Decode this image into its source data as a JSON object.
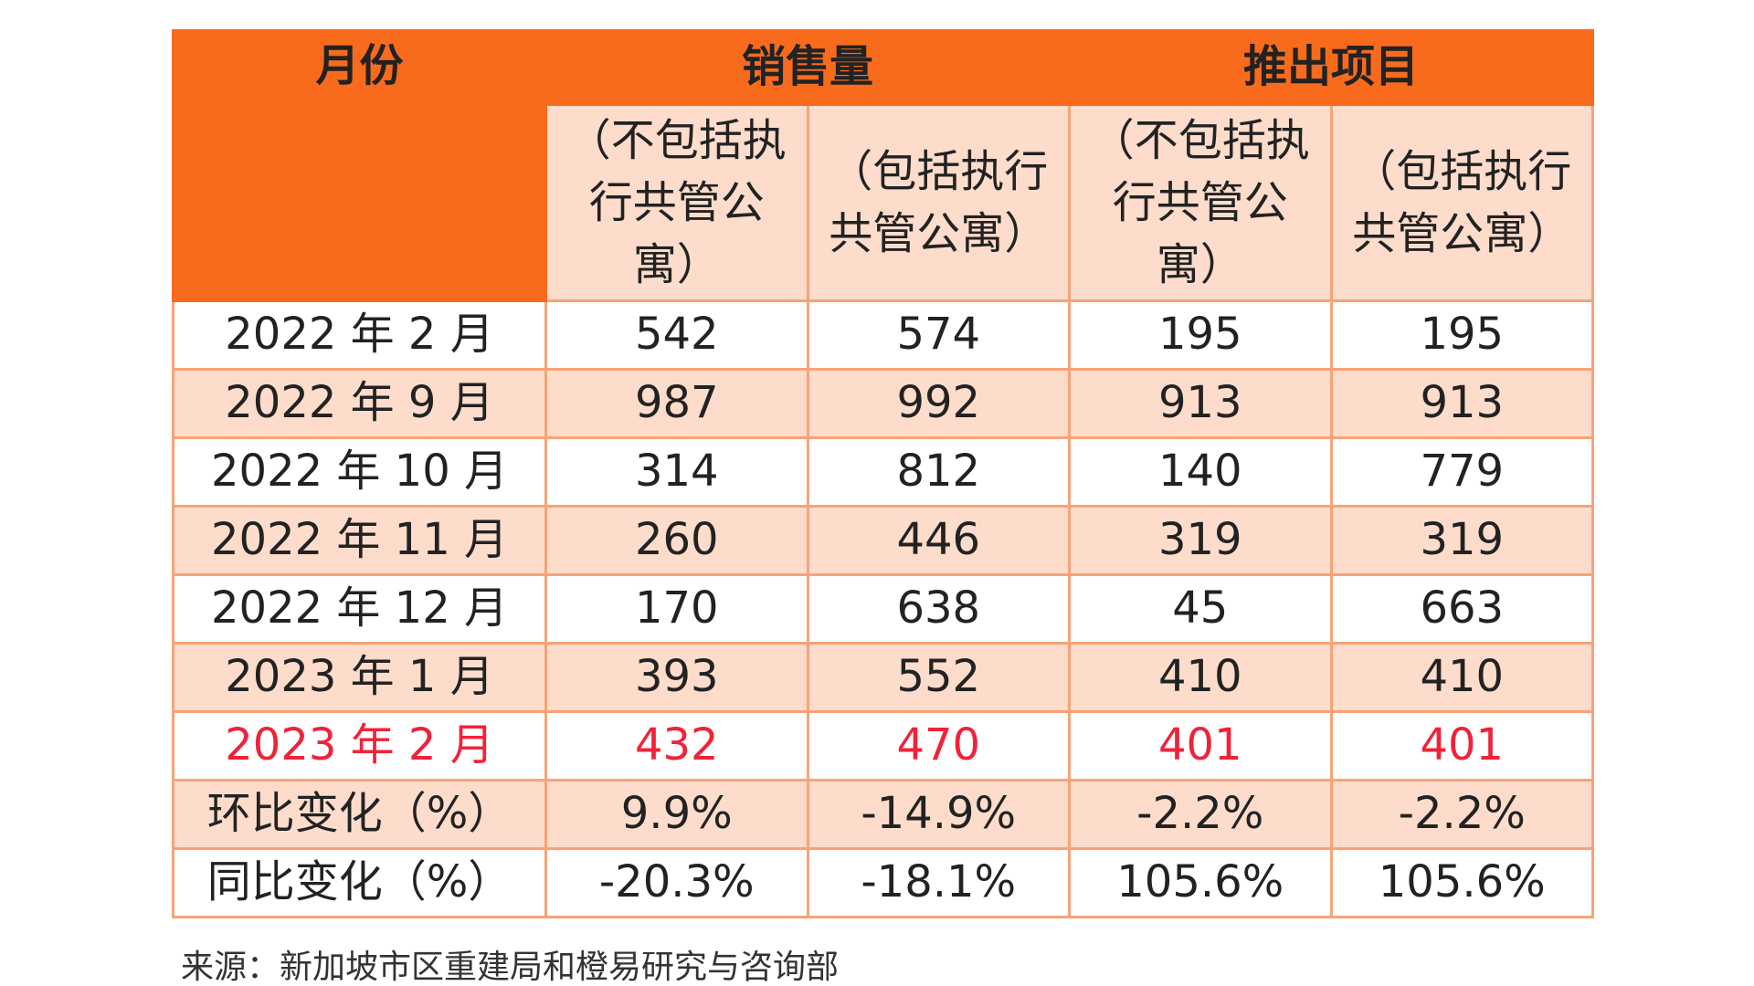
{
  "table": {
    "header": {
      "month": "月份",
      "sales": "销售量",
      "launches": "推出项目",
      "sub_excl": "（不包括执行共管公寓）",
      "sub_incl": "（包括执行共管公寓）"
    },
    "rows": [
      {
        "month": "2022 年 2 月",
        "v": [
          "542",
          "574",
          "195",
          "195"
        ]
      },
      {
        "month": "2022 年 9 月",
        "v": [
          "987",
          "992",
          "913",
          "913"
        ]
      },
      {
        "month": "2022 年 10 月",
        "v": [
          "314",
          "812",
          "140",
          "779"
        ]
      },
      {
        "month": "2022 年 11 月",
        "v": [
          "260",
          "446",
          "319",
          "319"
        ]
      },
      {
        "month": "2022 年 12 月",
        "v": [
          "170",
          "638",
          "45",
          "663"
        ]
      },
      {
        "month": "2023 年 1 月",
        "v": [
          "393",
          "552",
          "410",
          "410"
        ]
      },
      {
        "month": "2023 年 2 月",
        "v": [
          "432",
          "470",
          "401",
          "401"
        ]
      },
      {
        "month": "环比变化（%）",
        "v": [
          "9.9%",
          "-14.9%",
          "-2.2%",
          "-2.2%"
        ]
      },
      {
        "month": "同比变化（%）",
        "v": [
          "-20.3%",
          "-18.1%",
          "105.6%",
          "105.6%"
        ]
      }
    ]
  },
  "source": "来源：新加坡市区重建局和橙易研究与咨询部",
  "colors": {
    "header_orange": "#f86b1d",
    "light_peach": "#fddccb",
    "border": "#f7a377",
    "highlight_red": "#f0223a"
  }
}
